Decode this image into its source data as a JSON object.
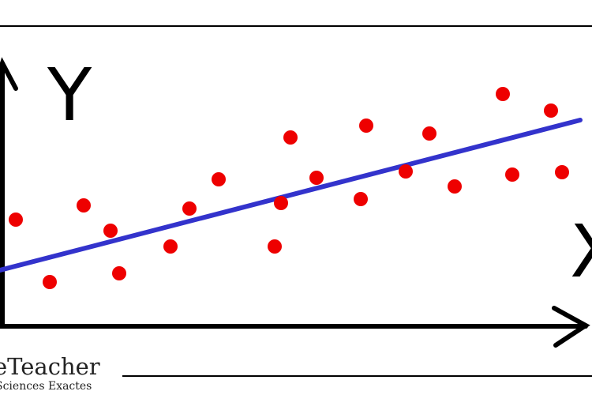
{
  "chart_data": {
    "type": "scatter",
    "y_label": "Y",
    "x_label": "X",
    "x": [
      20,
      63,
      106,
      140,
      151,
      216,
      240,
      277,
      348,
      356,
      368,
      401,
      457,
      464,
      514,
      544,
      576,
      637,
      649,
      698,
      712
    ],
    "values": [
      135,
      56,
      153,
      121,
      67,
      101,
      149,
      186,
      101,
      156,
      239,
      188,
      161,
      254,
      196,
      244,
      177,
      294,
      192,
      273,
      195
    ],
    "color": "#ee0000",
    "trend_line": {
      "x": [
        0,
        735
      ],
      "values": [
        71,
        261
      ],
      "color": "#3333cc"
    },
    "xlim": [
      0,
      750
    ],
    "ylim": [
      0,
      413
    ]
  },
  "logo": {
    "name": "eTeacher",
    "tagline": "Sciences Exactes"
  }
}
